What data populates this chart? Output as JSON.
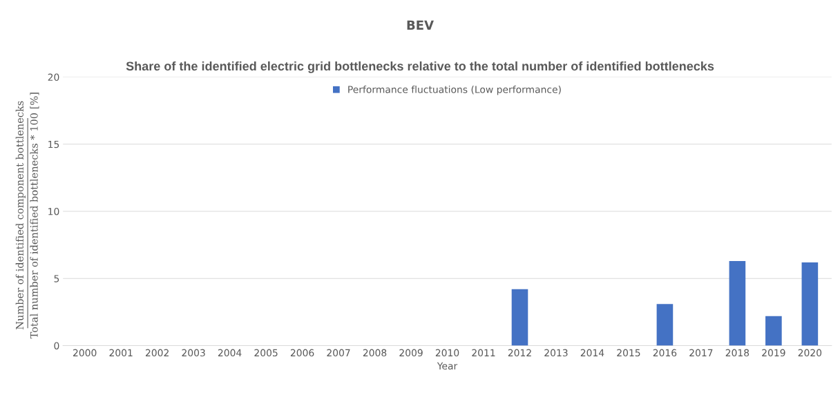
{
  "chart_data": {
    "type": "bar",
    "title": "BEV",
    "subtitle": "Share of the identified electric grid bottlenecks relative to the total number of identified bottlenecks",
    "xlabel": "Year",
    "ylabel": "Number of identified component bottlenecks\nTotal number of identified bottlenecks * 100 [%]",
    "categories": [
      "2000",
      "2001",
      "2002",
      "2003",
      "2004",
      "2005",
      "2006",
      "2007",
      "2008",
      "2009",
      "2010",
      "2011",
      "2012",
      "2013",
      "2014",
      "2015",
      "2016",
      "2017",
      "2018",
      "2019",
      "2020"
    ],
    "series": [
      {
        "name": "Performance fluctuations (Low performance)",
        "color": "#4472c4",
        "values": [
          0,
          0,
          0,
          0,
          0,
          0,
          0,
          0,
          0,
          0,
          0,
          0,
          4.2,
          0,
          0,
          0,
          3.1,
          0,
          6.3,
          2.2,
          6.2
        ]
      }
    ],
    "ylim": [
      0,
      20
    ],
    "yticks": [
      0,
      5,
      10,
      15,
      20
    ],
    "grid": "y",
    "legend": "top"
  }
}
